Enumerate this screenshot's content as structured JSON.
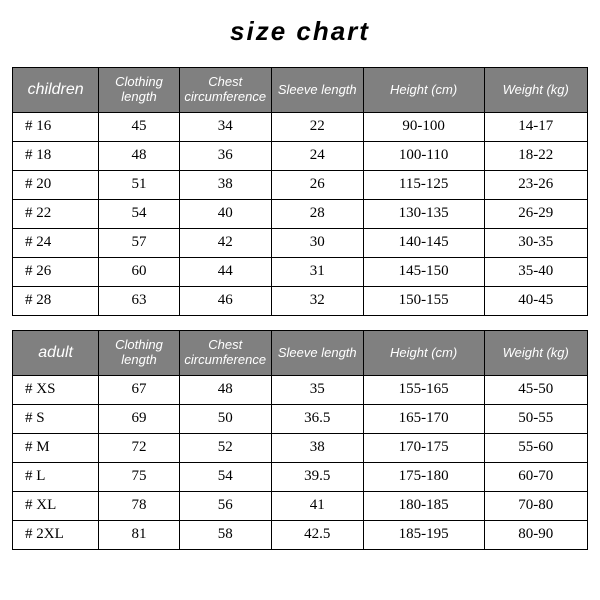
{
  "title": "size chart",
  "style": {
    "header_bg": "#808080",
    "header_fg": "#ffffff",
    "border_color": "#000000",
    "body_bg": "#ffffff",
    "title_fontsize": 26,
    "header_fontsize": 13,
    "cell_fontsize": 15,
    "col_widths_pct": [
      15,
      14,
      16,
      16,
      21,
      18
    ]
  },
  "tables": [
    {
      "corner": "children",
      "columns": [
        "Clothing length",
        "Chest circumference",
        "Sleeve length",
        "Height (cm)",
        "Weight (kg)"
      ],
      "rows": [
        {
          "size": "# 16",
          "cells": [
            "45",
            "34",
            "22",
            "90-100",
            "14-17"
          ]
        },
        {
          "size": "# 18",
          "cells": [
            "48",
            "36",
            "24",
            "100-110",
            "18-22"
          ]
        },
        {
          "size": "# 20",
          "cells": [
            "51",
            "38",
            "26",
            "115-125",
            "23-26"
          ]
        },
        {
          "size": "# 22",
          "cells": [
            "54",
            "40",
            "28",
            "130-135",
            "26-29"
          ]
        },
        {
          "size": "# 24",
          "cells": [
            "57",
            "42",
            "30",
            "140-145",
            "30-35"
          ]
        },
        {
          "size": "# 26",
          "cells": [
            "60",
            "44",
            "31",
            "145-150",
            "35-40"
          ]
        },
        {
          "size": "# 28",
          "cells": [
            "63",
            "46",
            "32",
            "150-155",
            "40-45"
          ]
        }
      ]
    },
    {
      "corner": "adult",
      "columns": [
        "Clothing length",
        "Chest circumference",
        "Sleeve length",
        "Height (cm)",
        "Weight (kg)"
      ],
      "rows": [
        {
          "size": "# XS",
          "cells": [
            "67",
            "48",
            "35",
            "155-165",
            "45-50"
          ]
        },
        {
          "size": "# S",
          "cells": [
            "69",
            "50",
            "36.5",
            "165-170",
            "50-55"
          ]
        },
        {
          "size": "# M",
          "cells": [
            "72",
            "52",
            "38",
            "170-175",
            "55-60"
          ]
        },
        {
          "size": "# L",
          "cells": [
            "75",
            "54",
            "39.5",
            "175-180",
            "60-70"
          ]
        },
        {
          "size": "# XL",
          "cells": [
            "78",
            "56",
            "41",
            "180-185",
            "70-80"
          ]
        },
        {
          "size": "# 2XL",
          "cells": [
            "81",
            "58",
            "42.5",
            "185-195",
            "80-90"
          ]
        }
      ]
    }
  ]
}
